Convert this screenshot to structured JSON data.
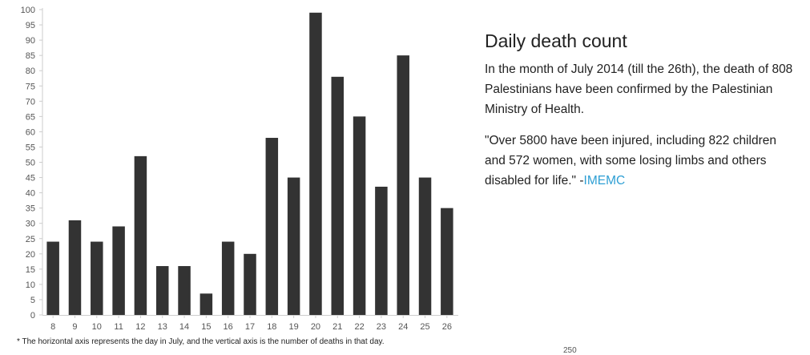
{
  "chart_data": {
    "type": "bar",
    "categories": [
      "8",
      "9",
      "10",
      "11",
      "12",
      "13",
      "14",
      "15",
      "16",
      "17",
      "18",
      "19",
      "20",
      "21",
      "22",
      "23",
      "24",
      "25",
      "26"
    ],
    "values": [
      24,
      31,
      24,
      29,
      52,
      16,
      16,
      7,
      24,
      20,
      58,
      45,
      99,
      78,
      65,
      42,
      85,
      45,
      35
    ],
    "yticks": [
      0,
      5,
      10,
      15,
      20,
      25,
      30,
      35,
      40,
      45,
      50,
      55,
      60,
      65,
      70,
      75,
      80,
      85,
      90,
      95,
      100
    ],
    "ylim": [
      0,
      100
    ],
    "bar_color": "#333333",
    "grid": false
  },
  "footnote": "* The horizontal axis represents the day in July, and the vertical axis is the number of deaths in that day.",
  "panel": {
    "title": "Daily death count",
    "para1": "In the month of July 2014 (till the 26th), the death of 808 Palestinians have been confirmed by the Palestinian Ministry of Health.",
    "para2": "\"Over 5800 have been injured, including 822 children and 572 women, with some losing limbs and others disabled for life.\" -",
    "link": "IMEMC",
    "link_color": "#2e9fd4"
  },
  "stray_label": "250"
}
